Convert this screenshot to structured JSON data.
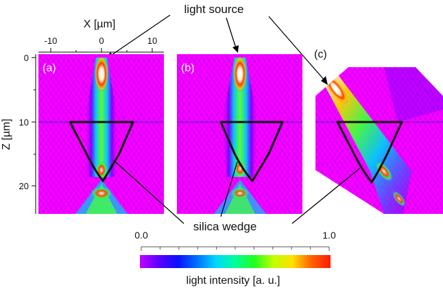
{
  "labels": {
    "light_source": "light source",
    "silica_wedge": "silica wedge",
    "x_axis_title": "X [µm]",
    "z_axis_title": "Z [µm]",
    "panel_a": "(a)",
    "panel_b": "(b)",
    "panel_c": "(c)",
    "colorbar_title": "light intensity [a. u.]"
  },
  "x_ticks": [
    "-10",
    "0",
    "10"
  ],
  "z_ticks": [
    "0",
    "10",
    "20"
  ],
  "colorbar": {
    "min_label": "0.0",
    "max_label": "1.0"
  },
  "colors": {
    "background_field": "#ff00ff",
    "colormap": [
      "#c400ff",
      "#5a00ff",
      "#0a10ff",
      "#0070ff",
      "#00d8ff",
      "#00ff9a",
      "#20ff20",
      "#c0ff00",
      "#ffe000",
      "#ff6000",
      "#ff1a00"
    ]
  }
}
